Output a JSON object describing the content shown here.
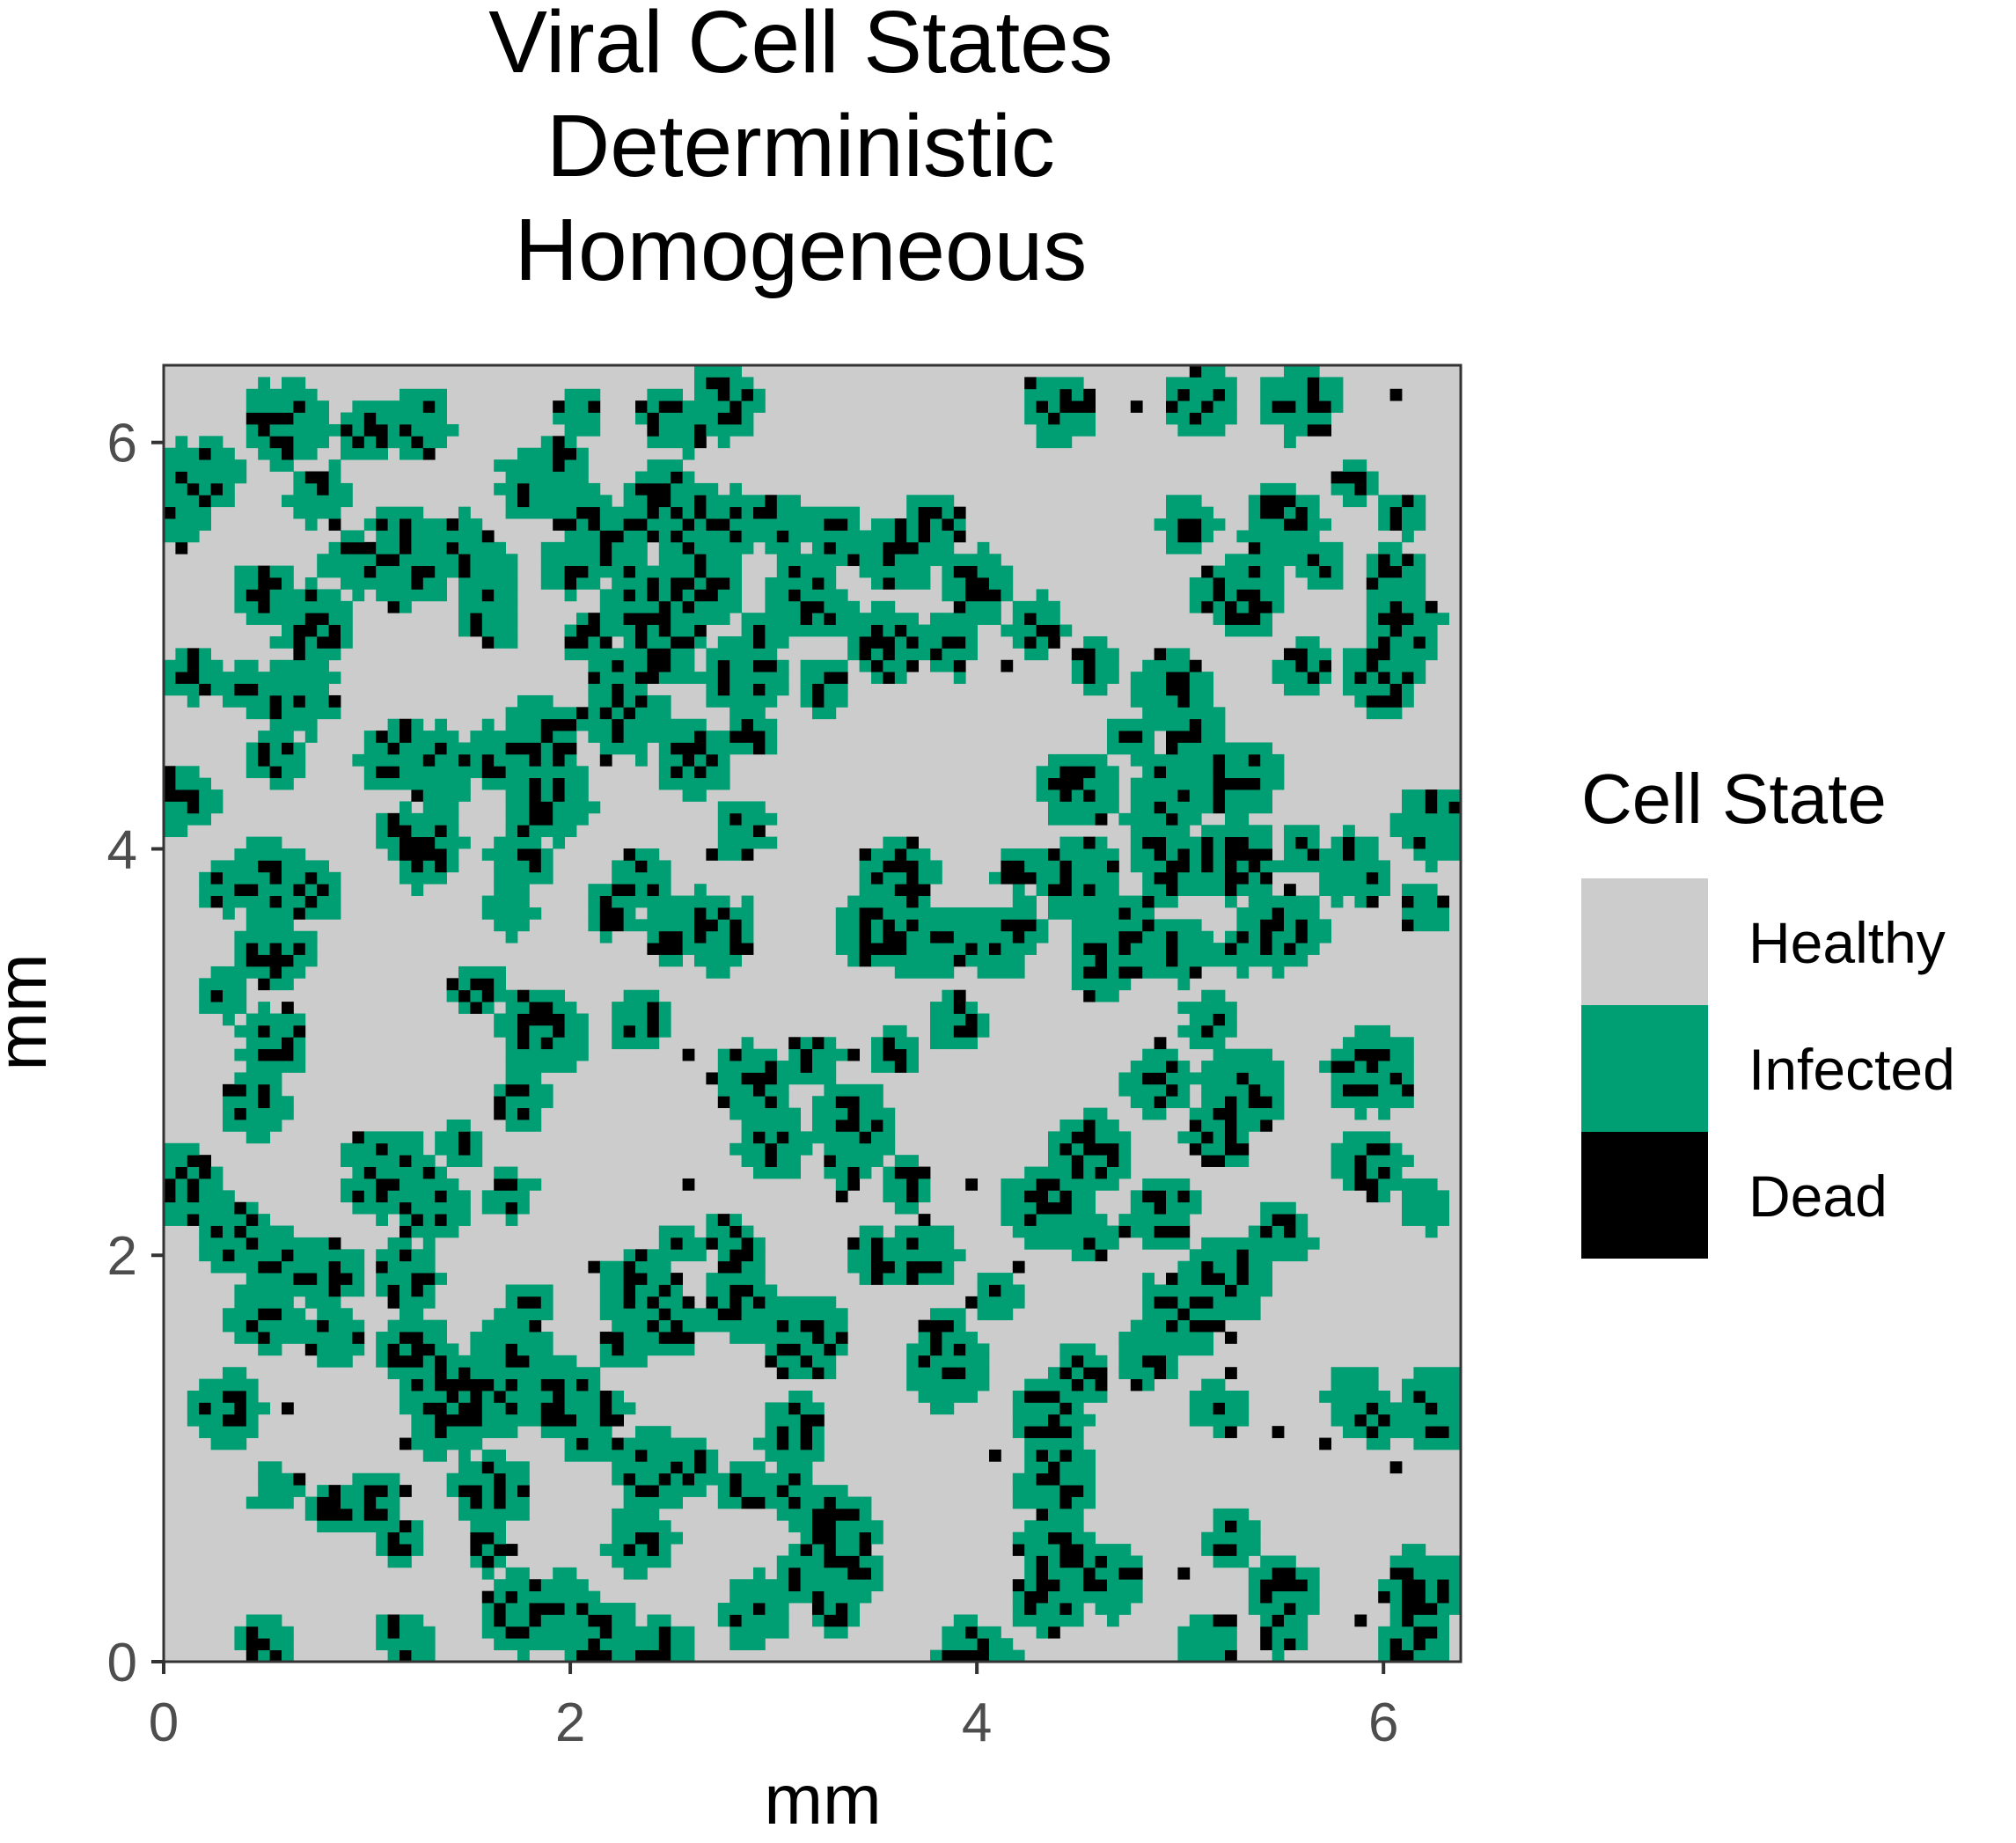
{
  "chart_data": {
    "type": "heatmap",
    "title_lines": [
      "Viral Cell States",
      "Deterministic",
      "Homogeneous"
    ],
    "xlabel": "mm",
    "ylabel": "mm",
    "xlim": [
      0,
      6.38
    ],
    "ylim": [
      0,
      6.38
    ],
    "x_ticks": [
      0,
      2,
      4,
      6
    ],
    "y_ticks": [
      0,
      2,
      4,
      6
    ],
    "x_tick_labels": [
      "0",
      "2",
      "4",
      "6"
    ],
    "y_tick_labels": [
      "0",
      "2",
      "4",
      "6"
    ],
    "grid": false,
    "background_state": "Healthy",
    "legend": {
      "title": "Cell State",
      "position": "right",
      "entries": [
        {
          "label": "Healthy",
          "color": "#cccccc"
        },
        {
          "label": "Infected",
          "color": "#009e73"
        },
        {
          "label": "Dead",
          "color": "#000000"
        }
      ]
    },
    "infection_foci_mm": [
      [
        0.6,
        6.1
      ],
      [
        1.0,
        6.05
      ],
      [
        1.25,
        6.1
      ],
      [
        0.75,
        5.75
      ],
      [
        0.1,
        5.7
      ],
      [
        0.2,
        5.85
      ],
      [
        1.15,
        5.55
      ],
      [
        1.2,
        5.4
      ],
      [
        1.45,
        5.5
      ],
      [
        0.95,
        5.4
      ],
      [
        1.6,
        5.35
      ],
      [
        1.6,
        5.15
      ],
      [
        1.85,
        5.8
      ],
      [
        1.95,
        5.9
      ],
      [
        2.05,
        5.65
      ],
      [
        2.2,
        5.5
      ],
      [
        2.0,
        5.4
      ],
      [
        2.1,
        5.05
      ],
      [
        2.2,
        4.9
      ],
      [
        2.05,
        6.15
      ],
      [
        2.5,
        6.1
      ],
      [
        2.75,
        6.2
      ],
      [
        2.45,
        5.75
      ],
      [
        2.3,
        5.55
      ],
      [
        2.6,
        5.6
      ],
      [
        2.8,
        5.6
      ],
      [
        2.65,
        5.3
      ],
      [
        2.35,
        5.2
      ],
      [
        2.45,
        5.0
      ],
      [
        2.25,
        4.65
      ],
      [
        3.3,
        5.55
      ],
      [
        3.6,
        5.45
      ],
      [
        3.15,
        5.25
      ],
      [
        2.95,
        5.05
      ],
      [
        3.3,
        5.15
      ],
      [
        3.55,
        5.0
      ],
      [
        3.85,
        5.0
      ],
      [
        3.25,
        4.8
      ],
      [
        2.85,
        4.85
      ],
      [
        2.9,
        4.55
      ],
      [
        2.6,
        4.45
      ],
      [
        2.85,
        4.1
      ],
      [
        3.05,
        5.6
      ],
      [
        4.4,
        6.15
      ],
      [
        3.8,
        5.6
      ],
      [
        4.0,
        5.3
      ],
      [
        4.3,
        5.1
      ],
      [
        4.6,
        4.9
      ],
      [
        4.75,
        4.55
      ],
      [
        4.95,
        4.8
      ],
      [
        5.1,
        4.6
      ],
      [
        5.0,
        4.3
      ],
      [
        4.9,
        4.1
      ],
      [
        5.3,
        4.35
      ],
      [
        5.1,
        6.2
      ],
      [
        5.6,
        6.2
      ],
      [
        5.05,
        5.6
      ],
      [
        5.5,
        5.6
      ],
      [
        5.85,
        5.8
      ],
      [
        6.1,
        5.65
      ],
      [
        6.05,
        5.35
      ],
      [
        6.1,
        5.1
      ],
      [
        5.7,
        5.4
      ],
      [
        5.3,
        5.25
      ],
      [
        5.6,
        4.9
      ],
      [
        6.0,
        4.85
      ],
      [
        4.5,
        4.3
      ],
      [
        4.95,
        3.9
      ],
      [
        5.25,
        3.95
      ],
      [
        5.6,
        4.0
      ],
      [
        5.85,
        3.9
      ],
      [
        5.5,
        3.6
      ],
      [
        4.2,
        3.9
      ],
      [
        4.5,
        3.85
      ],
      [
        4.75,
        3.6
      ],
      [
        5.0,
        3.5
      ],
      [
        5.3,
        3.5
      ],
      [
        5.15,
        3.15
      ],
      [
        6.25,
        4.1
      ],
      [
        6.2,
        3.7
      ],
      [
        4.9,
        2.85
      ],
      [
        5.3,
        2.8
      ],
      [
        5.95,
        2.9
      ],
      [
        5.2,
        2.6
      ],
      [
        4.55,
        2.5
      ],
      [
        4.35,
        2.25
      ],
      [
        4.55,
        2.1
      ],
      [
        4.9,
        2.2
      ],
      [
        5.5,
        2.1
      ],
      [
        5.95,
        2.45
      ],
      [
        6.2,
        2.25
      ],
      [
        5.25,
        1.9
      ],
      [
        5.0,
        1.7
      ],
      [
        4.85,
        1.5
      ],
      [
        4.5,
        1.4
      ],
      [
        5.2,
        1.25
      ],
      [
        5.95,
        1.2
      ],
      [
        6.25,
        1.25
      ],
      [
        6.2,
        0.35
      ],
      [
        6.15,
        0.1
      ],
      [
        5.5,
        0.35
      ],
      [
        5.25,
        0.6
      ],
      [
        5.5,
        0.15
      ],
      [
        5.15,
        0.1
      ],
      [
        4.65,
        0.4
      ],
      [
        4.4,
        0.55
      ],
      [
        4.4,
        0.9
      ],
      [
        4.35,
        1.2
      ],
      [
        3.95,
        0.05
      ],
      [
        4.1,
        0.0
      ],
      [
        3.85,
        1.6
      ],
      [
        4.1,
        1.8
      ],
      [
        3.75,
        2.0
      ],
      [
        3.5,
        2.0
      ],
      [
        3.65,
        2.35
      ],
      [
        3.35,
        2.45
      ],
      [
        3.0,
        2.55
      ],
      [
        2.9,
        2.85
      ],
      [
        3.2,
        2.95
      ],
      [
        3.4,
        2.65
      ],
      [
        3.5,
        3.6
      ],
      [
        3.6,
        3.85
      ],
      [
        3.75,
        3.55
      ],
      [
        4.1,
        3.55
      ],
      [
        3.9,
        3.15
      ],
      [
        3.6,
        3.0
      ],
      [
        2.2,
        3.7
      ],
      [
        2.35,
        3.85
      ],
      [
        2.5,
        3.6
      ],
      [
        2.7,
        3.6
      ],
      [
        2.35,
        3.15
      ],
      [
        1.85,
        3.1
      ],
      [
        1.55,
        3.3
      ],
      [
        1.7,
        3.7
      ],
      [
        1.75,
        3.95
      ],
      [
        1.9,
        4.25
      ],
      [
        1.85,
        4.55
      ],
      [
        1.65,
        4.45
      ],
      [
        1.35,
        4.4
      ],
      [
        1.15,
        4.45
      ],
      [
        1.15,
        4.1
      ],
      [
        1.3,
        4.0
      ],
      [
        0.75,
        3.8
      ],
      [
        0.5,
        3.85
      ],
      [
        0.3,
        3.8
      ],
      [
        0.1,
        4.25
      ],
      [
        0.4,
        4.8
      ],
      [
        0.65,
        4.75
      ],
      [
        0.55,
        4.45
      ],
      [
        0.15,
        4.85
      ],
      [
        0.5,
        5.25
      ],
      [
        0.75,
        5.1
      ],
      [
        0.3,
        3.3
      ],
      [
        0.55,
        3.5
      ],
      [
        0.55,
        3.05
      ],
      [
        0.45,
        2.75
      ],
      [
        0.1,
        2.35
      ],
      [
        0.35,
        2.1
      ],
      [
        0.55,
        2.0
      ],
      [
        0.8,
        1.9
      ],
      [
        0.5,
        1.7
      ],
      [
        0.85,
        1.6
      ],
      [
        1.1,
        2.4
      ],
      [
        1.25,
        2.35
      ],
      [
        1.45,
        2.55
      ],
      [
        1.3,
        2.25
      ],
      [
        1.7,
        2.3
      ],
      [
        1.75,
        2.75
      ],
      [
        1.2,
        1.9
      ],
      [
        1.2,
        1.55
      ],
      [
        1.35,
        1.35
      ],
      [
        1.4,
        1.2
      ],
      [
        1.6,
        1.3
      ],
      [
        1.8,
        1.75
      ],
      [
        1.7,
        1.55
      ],
      [
        1.95,
        1.3
      ],
      [
        2.1,
        1.1
      ],
      [
        2.2,
        1.25
      ],
      [
        2.25,
        1.55
      ],
      [
        2.35,
        1.8
      ],
      [
        2.5,
        1.65
      ],
      [
        2.4,
        0.95
      ],
      [
        2.6,
        0.95
      ],
      [
        2.85,
        0.85
      ],
      [
        3.1,
        0.85
      ],
      [
        3.1,
        1.15
      ],
      [
        3.3,
        0.65
      ],
      [
        3.35,
        0.45
      ],
      [
        3.15,
        0.45
      ],
      [
        2.9,
        0.25
      ],
      [
        3.3,
        0.25
      ],
      [
        2.15,
        0.1
      ],
      [
        2.45,
        0.05
      ],
      [
        2.35,
        0.6
      ],
      [
        1.95,
        0.25
      ],
      [
        1.75,
        0.25
      ],
      [
        1.6,
        0.55
      ],
      [
        1.6,
        0.85
      ],
      [
        1.15,
        0.6
      ],
      [
        1.05,
        0.8
      ],
      [
        0.85,
        0.75
      ],
      [
        0.55,
        0.85
      ],
      [
        0.3,
        1.25
      ],
      [
        0.5,
        0.1
      ],
      [
        1.2,
        0.1
      ],
      [
        2.55,
        2.05
      ],
      [
        2.75,
        2.1
      ],
      [
        2.85,
        2.0
      ],
      [
        2.85,
        1.75
      ],
      [
        3.15,
        1.6
      ],
      [
        3.85,
        1.45
      ],
      [
        4.35,
        0.3
      ],
      [
        5.85,
        1.3
      ],
      [
        4.65,
        3.45
      ],
      [
        4.2,
        3.6
      ]
    ]
  }
}
